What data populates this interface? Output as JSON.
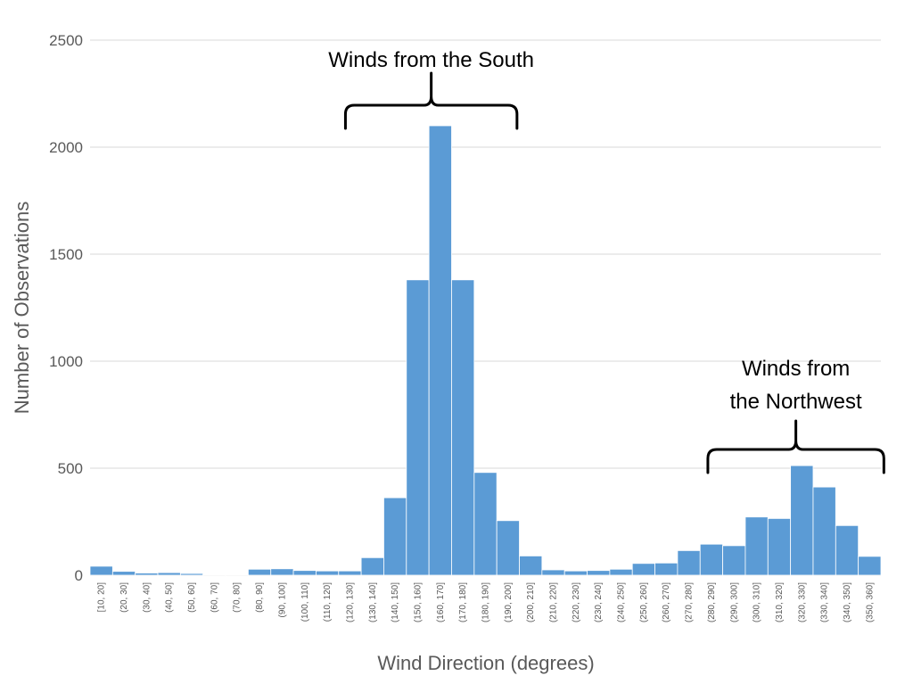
{
  "chart_data": {
    "type": "bar",
    "title": "",
    "xlabel": "Wind Direction (degrees)",
    "ylabel": "Number of Observations",
    "ylim": [
      0,
      2500
    ],
    "yticks": [
      0,
      500,
      1000,
      1500,
      2000,
      2500
    ],
    "grid": true,
    "legend": "none",
    "bar_color": "#5b9bd5",
    "categories": [
      "[10, 20]",
      "(20, 30]",
      "(30, 40]",
      "(40, 50]",
      "(50, 60]",
      "(60, 70]",
      "(70, 80]",
      "(80, 90]",
      "(90, 100]",
      "(100, 110]",
      "(110, 120]",
      "(120, 130]",
      "(130, 140]",
      "(140, 150]",
      "(150, 160]",
      "(160, 170]",
      "(170, 180]",
      "(180, 190]",
      "(190, 200]",
      "(200, 210]",
      "(210, 220]",
      "(220, 230]",
      "(230, 240]",
      "(240, 250]",
      "(250, 260]",
      "(260, 270]",
      "(270, 280]",
      "(280, 290]",
      "(290, 300]",
      "(300, 310]",
      "(310, 320]",
      "(320, 330]",
      "(330, 340]",
      "(340, 350]",
      "(350, 360]"
    ],
    "values": [
      42,
      18,
      10,
      12,
      8,
      3,
      3,
      28,
      30,
      22,
      20,
      20,
      82,
      362,
      1380,
      2100,
      1380,
      480,
      255,
      90,
      25,
      20,
      22,
      28,
      55,
      57,
      115,
      145,
      138,
      272,
      265,
      512,
      412,
      232,
      88
    ],
    "annotations": [
      {
        "lines": [
          "Winds from the South"
        ],
        "from_category": "(120, 130]",
        "to_category": "(190, 200]"
      },
      {
        "lines": [
          "Winds from",
          "the Northwest"
        ],
        "from_category": "(280, 290]",
        "to_category": "(350, 360]"
      }
    ]
  }
}
